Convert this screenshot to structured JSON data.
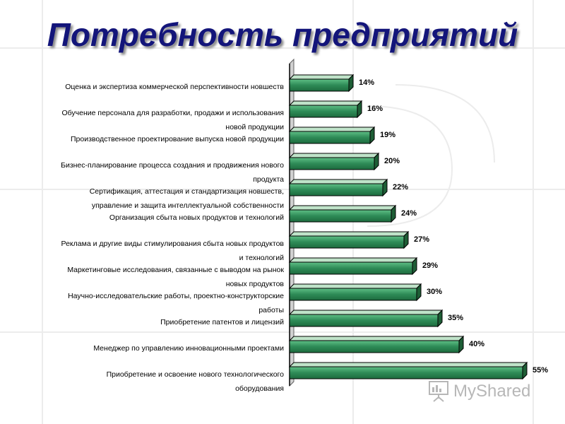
{
  "title": "Потребность предприятий",
  "watermark": "MyShared",
  "colors": {
    "title": "#13157a",
    "bar_front": "#2e8b57",
    "bar_top": "#bfe3c9",
    "bar_side": "#1e5e36",
    "axis": "#000000"
  },
  "chart_data": {
    "type": "bar",
    "orientation": "horizontal",
    "value_suffix": "%",
    "xlim": [
      0,
      55
    ],
    "grid": false,
    "categories": [
      [
        "Оценка и экспертиза коммерческой перспективности новшеств"
      ],
      [
        "Обучение персонала для разработки, продажи и использования",
        "новой продукции"
      ],
      [
        "Производственное проектирование выпуска новой продукции"
      ],
      [
        "Бизнес-планирование процесса создания и продвижения нового",
        "продукта"
      ],
      [
        "Сертификация, аттестация и стандартизация новшеств,",
        "управление и защита интеллектуальной собственности"
      ],
      [
        "Организация сбыта новых продуктов и технологий"
      ],
      [
        "Реклама и другие виды стимулирования сбыта новых продуктов",
        "и технологий"
      ],
      [
        "Маркетинговые исследования, связанные с выводом на рынок",
        "новых продуктов"
      ],
      [
        "Научно-исследовательские работы, проектно-конструкторские",
        "работы"
      ],
      [
        "Приобретение патентов и лицензий"
      ],
      [
        "Менеджер по управлению инновационными проектами"
      ],
      [
        "Приобретение и освоение нового технологического",
        "оборудования"
      ]
    ],
    "values": [
      14,
      16,
      19,
      20,
      22,
      24,
      27,
      29,
      30,
      35,
      40,
      55
    ]
  }
}
